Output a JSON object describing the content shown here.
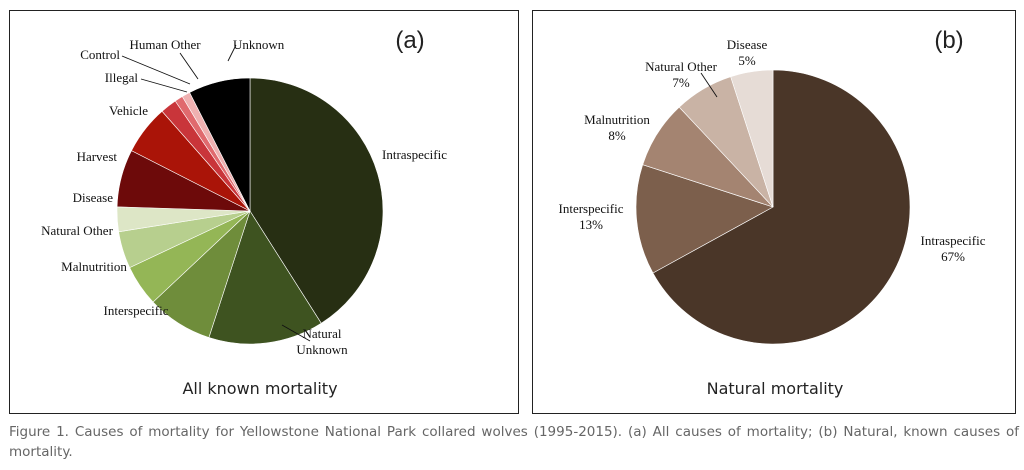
{
  "chart_data": [
    {
      "type": "pie",
      "panel_letter": "(a)",
      "title": "All known mortality",
      "slices": [
        {
          "label": "Intraspecific",
          "value": 41.0,
          "color": "#272f13"
        },
        {
          "label": "Natural Unknown",
          "value": 14.0,
          "color": "#3e5320"
        },
        {
          "label": "Interspecific",
          "value": 8.0,
          "color": "#6f8d3b"
        },
        {
          "label": "Malnutrition",
          "value": 5.0,
          "color": "#94b656"
        },
        {
          "label": "Natural Other",
          "value": 4.5,
          "color": "#b7cf8e"
        },
        {
          "label": "Disease",
          "value": 3.0,
          "color": "#dde6c6"
        },
        {
          "label": "Harvest",
          "value": 7.0,
          "color": "#6d0a0a"
        },
        {
          "label": "Vehicle",
          "value": 6.0,
          "color": "#aa1408"
        },
        {
          "label": "Illegal",
          "value": 2.0,
          "color": "#c9353a"
        },
        {
          "label": "Control",
          "value": 1.0,
          "color": "#e06a6e"
        },
        {
          "label": "Human Other",
          "value": 1.0,
          "color": "#efb1b1"
        },
        {
          "label": "Unknown",
          "value": 7.5,
          "color": "#000000"
        }
      ]
    },
    {
      "type": "pie",
      "panel_letter": "(b)",
      "title": "Natural mortality",
      "slices": [
        {
          "label": "Intraspecific",
          "pct": "67%",
          "value": 67,
          "color": "#4a3628"
        },
        {
          "label": "Interspecific",
          "pct": "13%",
          "value": 13,
          "color": "#7c5f4c"
        },
        {
          "label": "Malnutrition",
          "pct": "8%",
          "value": 8,
          "color": "#a48471"
        },
        {
          "label": "Natural Other",
          "pct": "7%",
          "value": 7,
          "color": "#c9b3a5"
        },
        {
          "label": "Disease",
          "pct": "5%",
          "value": 5,
          "color": "#e6dcd6"
        }
      ]
    }
  ],
  "caption": "Figure 1. Causes of mortality for Yellowstone National Park collared wolves (1995-2015). (a) All causes of mortality; (b) Natural, known causes of mortality."
}
